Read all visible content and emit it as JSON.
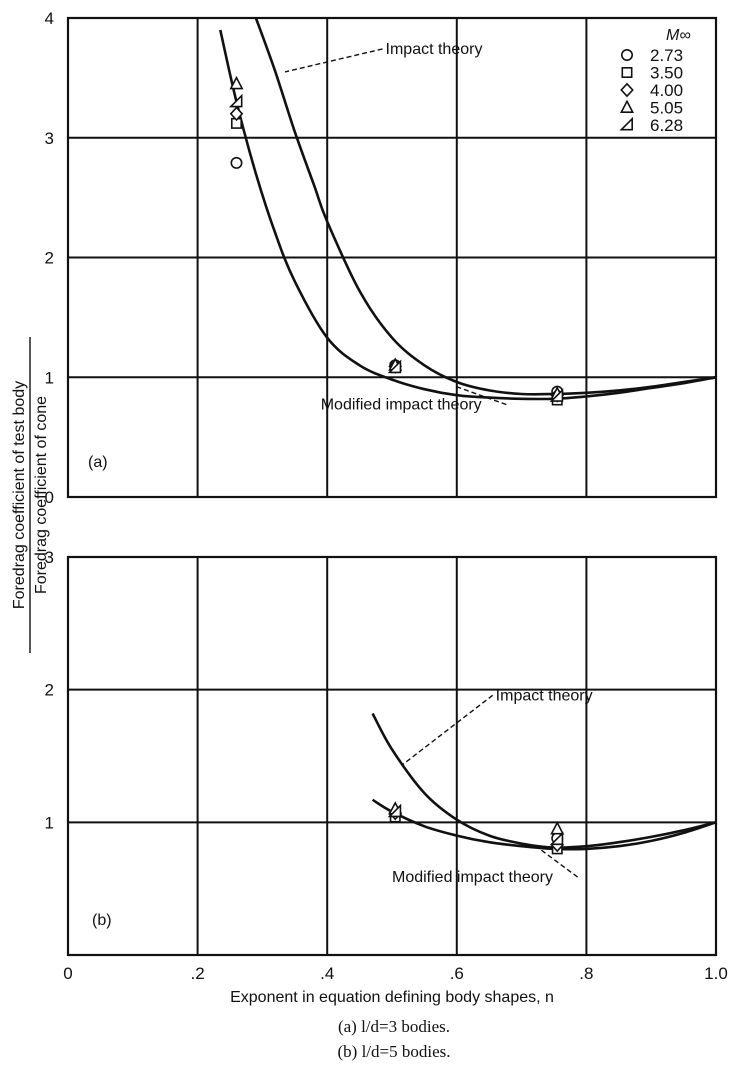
{
  "chart_data": [
    {
      "panel": "(a)",
      "type": "line",
      "xlim": [
        0,
        1.0
      ],
      "ylim": [
        0,
        4
      ],
      "x_ticks": [
        0,
        0.2,
        0.4,
        0.6,
        0.8,
        1.0
      ],
      "y_ticks": [
        0,
        1,
        2,
        3,
        4
      ],
      "y_tick_labels": [
        "0",
        "1",
        "2",
        "3",
        "4"
      ],
      "grid": true,
      "curves": [
        {
          "name": "Impact theory",
          "points": [
            [
              0.29,
              4.0
            ],
            [
              0.32,
              3.55
            ],
            [
              0.35,
              3.05
            ],
            [
              0.38,
              2.6
            ],
            [
              0.4,
              2.3
            ],
            [
              0.45,
              1.72
            ],
            [
              0.5,
              1.33
            ],
            [
              0.55,
              1.1
            ],
            [
              0.6,
              0.96
            ],
            [
              0.65,
              0.89
            ],
            [
              0.7,
              0.86
            ],
            [
              0.75,
              0.86
            ],
            [
              0.8,
              0.87
            ],
            [
              0.85,
              0.89
            ],
            [
              0.9,
              0.92
            ],
            [
              0.95,
              0.96
            ],
            [
              1.0,
              1.0
            ]
          ]
        },
        {
          "name": "Modified impact theory",
          "points": [
            [
              0.235,
              3.9
            ],
            [
              0.26,
              3.3
            ],
            [
              0.29,
              2.7
            ],
            [
              0.32,
              2.2
            ],
            [
              0.35,
              1.8
            ],
            [
              0.4,
              1.33
            ],
            [
              0.45,
              1.1
            ],
            [
              0.5,
              0.98
            ],
            [
              0.55,
              0.9
            ],
            [
              0.6,
              0.85
            ],
            [
              0.65,
              0.83
            ],
            [
              0.7,
              0.82
            ],
            [
              0.75,
              0.82
            ],
            [
              0.8,
              0.84
            ],
            [
              0.85,
              0.87
            ],
            [
              0.9,
              0.91
            ],
            [
              0.95,
              0.95
            ],
            [
              1.0,
              1.0
            ]
          ]
        }
      ],
      "series": [
        {
          "name": "2.73",
          "marker": "circle",
          "points": [
            [
              0.26,
              2.79
            ],
            [
              0.505,
              1.1
            ],
            [
              0.755,
              0.88
            ]
          ]
        },
        {
          "name": "3.50",
          "marker": "square",
          "points": [
            [
              0.26,
              3.12
            ],
            [
              0.505,
              1.08
            ],
            [
              0.755,
              0.81
            ]
          ]
        },
        {
          "name": "4.00",
          "marker": "diamond",
          "points": [
            [
              0.26,
              3.2
            ],
            [
              0.505,
              1.09
            ],
            [
              0.755,
              0.85
            ]
          ]
        },
        {
          "name": "5.05",
          "marker": "triangle",
          "points": [
            [
              0.26,
              3.45
            ],
            [
              0.505,
              1.1
            ],
            [
              0.755,
              0.86
            ]
          ]
        },
        {
          "name": "6.28",
          "marker": "half-triangle",
          "points": [
            [
              0.26,
              3.3
            ],
            [
              0.505,
              1.08
            ],
            [
              0.755,
              0.84
            ]
          ]
        }
      ],
      "annotations": [
        {
          "text": "Impact theory",
          "x": 0.49,
          "y": 3.7,
          "anchor_x": 0.335,
          "anchor_y": 3.55
        },
        {
          "text": "Modified impact theory",
          "x": 0.39,
          "y": 0.73,
          "anchor_x": 0.6,
          "anchor_y": 0.92
        }
      ],
      "legend_title": "M∞",
      "legend_placement": "top-right",
      "panel_label": "(a)"
    },
    {
      "panel": "(b)",
      "type": "line",
      "xlim": [
        0,
        1.0
      ],
      "ylim": [
        0,
        3
      ],
      "x_ticks": [
        0,
        0.2,
        0.4,
        0.6,
        0.8,
        1.0
      ],
      "x_tick_labels": [
        "0",
        ".2",
        ".4",
        ".6",
        ".8",
        "1.0"
      ],
      "y_ticks": [
        0,
        1,
        2,
        3
      ],
      "y_tick_labels": [
        "",
        "1",
        "2",
        "3"
      ],
      "grid": true,
      "curves": [
        {
          "name": "Impact theory",
          "points": [
            [
              0.47,
              1.82
            ],
            [
              0.5,
              1.55
            ],
            [
              0.55,
              1.22
            ],
            [
              0.6,
              1.02
            ],
            [
              0.65,
              0.9
            ],
            [
              0.7,
              0.84
            ],
            [
              0.75,
              0.81
            ],
            [
              0.8,
              0.82
            ],
            [
              0.85,
              0.85
            ],
            [
              0.9,
              0.89
            ],
            [
              0.95,
              0.94
            ],
            [
              1.0,
              1.0
            ]
          ]
        },
        {
          "name": "Modified impact theory",
          "points": [
            [
              0.47,
              1.17
            ],
            [
              0.5,
              1.08
            ],
            [
              0.55,
              0.97
            ],
            [
              0.6,
              0.9
            ],
            [
              0.65,
              0.85
            ],
            [
              0.7,
              0.82
            ],
            [
              0.75,
              0.8
            ],
            [
              0.8,
              0.8
            ],
            [
              0.85,
              0.82
            ],
            [
              0.9,
              0.86
            ],
            [
              0.95,
              0.92
            ],
            [
              1.0,
              1.0
            ]
          ]
        }
      ],
      "series": [
        {
          "name": "2.73",
          "marker": "circle",
          "points": [
            [
              0.505,
              1.06
            ],
            [
              0.755,
              0.88
            ]
          ]
        },
        {
          "name": "3.50",
          "marker": "square",
          "points": [
            [
              0.505,
              1.04
            ],
            [
              0.755,
              0.8
            ]
          ]
        },
        {
          "name": "4.00",
          "marker": "diamond",
          "points": [
            [
              0.505,
              1.07
            ],
            [
              0.755,
              0.83
            ]
          ]
        },
        {
          "name": "5.05",
          "marker": "triangle",
          "points": [
            [
              0.505,
              1.1
            ],
            [
              0.755,
              0.95
            ]
          ]
        },
        {
          "name": "6.28",
          "marker": "half-triangle",
          "points": [
            [
              0.505,
              1.08
            ],
            [
              0.755,
              0.87
            ]
          ]
        }
      ],
      "annotations": [
        {
          "text": "Impact theory",
          "x": 0.66,
          "y": 1.92,
          "anchor_x": 0.515,
          "anchor_y": 1.43
        },
        {
          "text": "Modified impact theory",
          "x": 0.5,
          "y": 0.55,
          "anchor_x": 0.725,
          "anchor_y": 0.81
        }
      ],
      "panel_label": "(b)",
      "xlabel": "Exponent in equation defining body shapes, n"
    }
  ],
  "figure": {
    "ylabel_top": "Foredrag coefficient of test body",
    "ylabel_bottom": "Foredrag coefficient of cone",
    "caption_a": "(a) l/d=3 bodies.",
    "caption_b": "(b) l/d=5 bodies."
  }
}
